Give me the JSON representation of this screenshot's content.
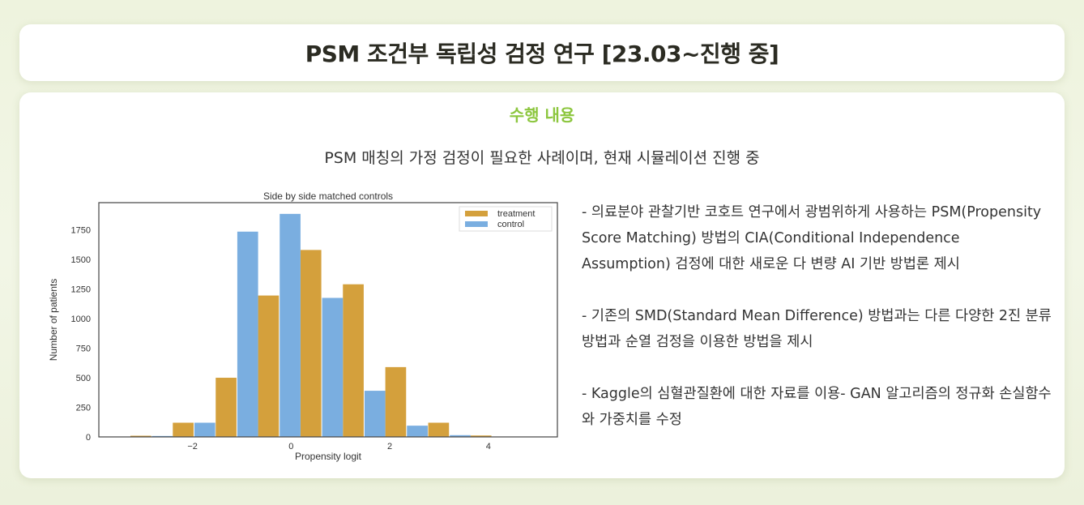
{
  "header": {
    "title": "PSM 조건부 독립성 검정 연구 [23.03~진행 중]"
  },
  "main": {
    "section_title": "수행 내용",
    "subtitle": "PSM 매칭의 가정 검정이 필요한 사례이며, 현재 시뮬레이션 진행 중",
    "bullets": [
      "-  의료분야 관찰기반 코호트 연구에서 광범위하게 사용하는 PSM(Propensity Score Matching) 방법의 CIA(Conditional Independence Assumption) 검정에 대한 새로운 다 변량 AI 기반 방법론 제시",
      "-  기존의 SMD(Standard Mean Difference) 방법과는 다른 다양한 2진 분류 방법과 순열 검정을 이용한 방법을 제시",
      "-  Kaggle의 심혈관질환에 대한 자료를 이용-  GAN 알고리즘의 정규화 손실함수와 가중치를 수정"
    ]
  },
  "chart_data": {
    "type": "bar",
    "title": "Side by side matched controls",
    "xlabel": "Propensity logit",
    "ylabel": "Number of patients",
    "x": [
      -2.83,
      -1.97,
      -1.1,
      -0.24,
      0.62,
      1.48,
      2.34,
      3.21,
      4.07
    ],
    "series": [
      {
        "name": "treatment",
        "color": "#d4a03c",
        "values": [
          10,
          120,
          500,
          1195,
          1580,
          1290,
          590,
          120,
          12
        ]
      },
      {
        "name": "control",
        "color": "#7aaee0",
        "values": [
          8,
          120,
          1735,
          1885,
          1175,
          390,
          95,
          15,
          0
        ]
      }
    ],
    "xlim": [
      -3.9,
      5.4
    ],
    "ylim": [
      0,
      1980
    ],
    "xticks": [
      "-2",
      "0",
      "2",
      "4"
    ],
    "yticks": [
      "0",
      "250",
      "500",
      "750",
      "1000",
      "1250",
      "1500",
      "1750"
    ],
    "grid": false,
    "legend": "top-right"
  }
}
